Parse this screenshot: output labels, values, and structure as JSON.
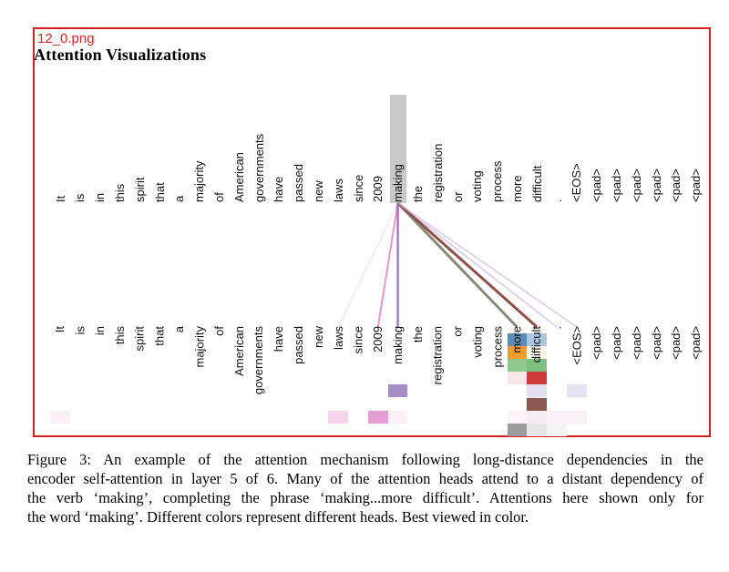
{
  "filename": "12_0.png",
  "title": "Attention Visualizations",
  "chart_data": {
    "type": "heatmap",
    "description": "Encoder self-attention lines and per-head attention weight grid for the selected word",
    "tokens": [
      "It",
      "is",
      "in",
      "this",
      "spirit",
      "that",
      "a",
      "majority",
      "of",
      "American",
      "governments",
      "have",
      "passed",
      "new",
      "laws",
      "since",
      "2009",
      "making",
      "the",
      "registration",
      "or",
      "voting",
      "process",
      "more",
      "difficult",
      ".",
      "<EOS>",
      "<pad>",
      "<pad>",
      "<pad>",
      "<pad>",
      "<pad>",
      "<pad>"
    ],
    "selected_token": "making",
    "selected_token_index": 17,
    "num_heads": 8,
    "head_colors": [
      "#1f77b4",
      "#ff7f0e",
      "#2ca02c",
      "#d62728",
      "#9467bd",
      "#8c564b",
      "#e377c2",
      "#7f7f7f"
    ],
    "highlight_color": "#c9c9c9",
    "lines": [
      {
        "target_index": 14,
        "target_token": "laws",
        "color": "#e377c2",
        "opacity": 0.2,
        "width": 1.5
      },
      {
        "target_index": 16,
        "target_token": "2009",
        "color": "#e678c4",
        "opacity": 0.8,
        "width": 2
      },
      {
        "target_index": 17,
        "target_token": "making",
        "color": "#9467bd",
        "opacity": 0.85,
        "width": 2.5
      },
      {
        "target_index": 23,
        "target_token": "more",
        "color": "#8c8878",
        "opacity": 1,
        "width": 3
      },
      {
        "target_index": 24,
        "target_token": "difficult",
        "color": "#8f5049",
        "opacity": 1,
        "width": 3
      },
      {
        "target_index": 25,
        "target_token": ".",
        "color": "#9467bd",
        "opacity": 0.3,
        "width": 2
      },
      {
        "target_index": 26,
        "target_token": "<EOS>",
        "color": "#c8b3d8",
        "opacity": 0.55,
        "width": 2
      }
    ],
    "cells": [
      {
        "token_index": 0,
        "token": "It",
        "head_row": 6,
        "color": "#fdeff8"
      },
      {
        "token_index": 14,
        "token": "laws",
        "head_row": 6,
        "color": "#f6d3eb"
      },
      {
        "token_index": 16,
        "token": "2009",
        "head_row": 6,
        "color": "#e79ed5"
      },
      {
        "token_index": 17,
        "token": "making",
        "head_row": 4,
        "color": "#a78dc8"
      },
      {
        "token_index": 17,
        "token": "making",
        "head_row": 6,
        "color": "#fbeff8"
      },
      {
        "token_index": 23,
        "token": "more",
        "head_row": 0,
        "color": "#5d8cbb"
      },
      {
        "token_index": 23,
        "token": "more",
        "head_row": 1,
        "color": "#f49b2e"
      },
      {
        "token_index": 23,
        "token": "more",
        "head_row": 2,
        "color": "#8fc98f"
      },
      {
        "token_index": 23,
        "token": "more",
        "head_row": 3,
        "color": "#f8e6ea"
      },
      {
        "token_index": 23,
        "token": "more",
        "head_row": 6,
        "color": "#fdf4f9"
      },
      {
        "token_index": 23,
        "token": "more",
        "head_row": 7,
        "color": "#9b9b9b"
      },
      {
        "token_index": 24,
        "token": "difficult",
        "head_row": 0,
        "color": "#aac7df"
      },
      {
        "token_index": 24,
        "token": "difficult",
        "head_row": 1,
        "color": "#fdf4ea"
      },
      {
        "token_index": 24,
        "token": "difficult",
        "head_row": 2,
        "color": "#7dc07d"
      },
      {
        "token_index": 24,
        "token": "difficult",
        "head_row": 3,
        "color": "#cd3a3a"
      },
      {
        "token_index": 24,
        "token": "difficult",
        "head_row": 4,
        "color": "#e3def0"
      },
      {
        "token_index": 24,
        "token": "difficult",
        "head_row": 5,
        "color": "#8b574e"
      },
      {
        "token_index": 24,
        "token": "difficult",
        "head_row": 6,
        "color": "#f8ecf4"
      },
      {
        "token_index": 24,
        "token": "difficult",
        "head_row": 7,
        "color": "#e6e6e6"
      },
      {
        "token_index": 25,
        "token": ".",
        "head_row": 6,
        "color": "#faeff6"
      },
      {
        "token_index": 25,
        "token": ".",
        "head_row": 7,
        "color": "#f3f3f3"
      },
      {
        "token_index": 26,
        "token": "<EOS>",
        "head_row": 4,
        "color": "#e7e2f3"
      },
      {
        "token_index": 26,
        "token": "<EOS>",
        "head_row": 6,
        "color": "#f9eff7"
      }
    ]
  },
  "caption": {
    "lines": [
      "Figure 3: An example of the attention mechanism following long-distance dependencies in the",
      "encoder self-attention in layer 5 of 6. Many of the attention heads attend to a distant dependency of",
      "the verb ‘making’, completing the phrase ‘making...more difficult’. Attentions here shown only for",
      "the word ‘making’. Different colors represent different heads. Best viewed in color."
    ]
  }
}
